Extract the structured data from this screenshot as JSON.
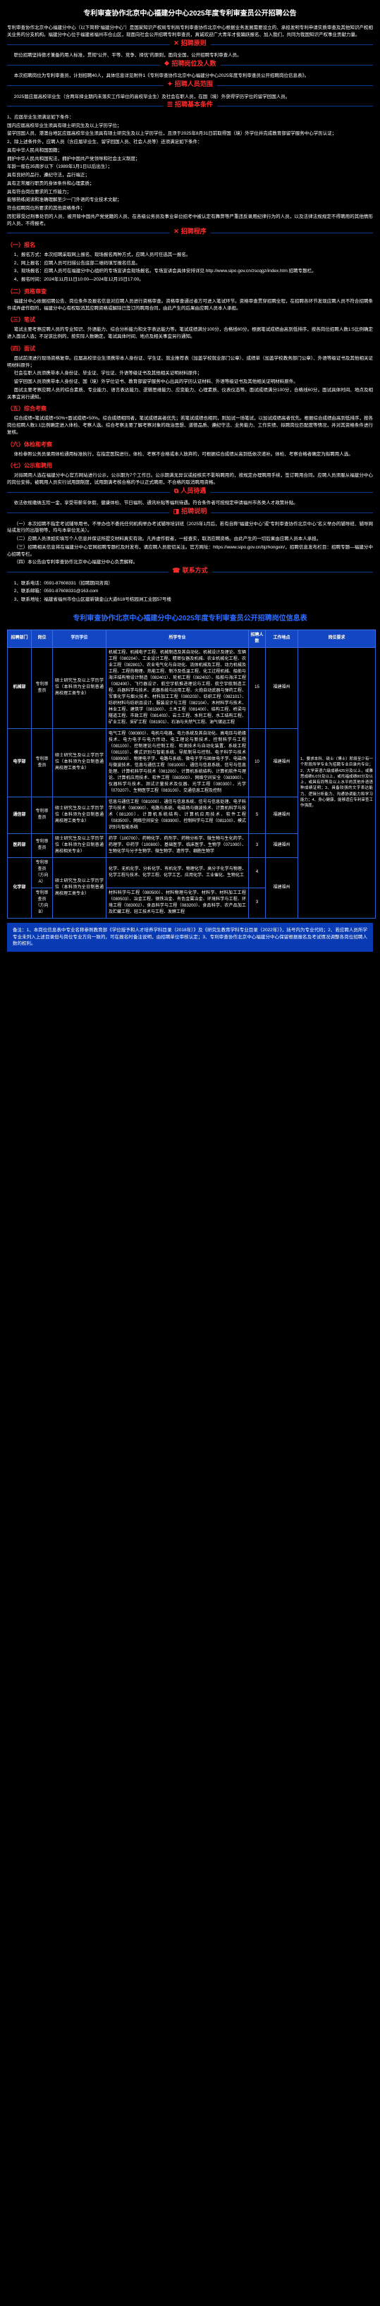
{
  "page": {
    "title": "专利审查协作北京中心福建分中心2025年度专利审查员公开招聘公告",
    "intro": "专利审查协作北京中心福建分中心（以下简称“福建分中心”）是国家知识产权局专利局专利审查协作北京中心根据业务发展需要设立的、承担发明专利申请实质审查及其他知识产权相关业务的分支机构。福建分中心位于福建省福州市仓山区，现面向社会公开招聘专利审查员，真诚欢迎广大青年才俊踊跃报名、加入我们，共同为我国知识产权事业贡献力量。",
    "sections": {
      "s1": {
        "icon": "✕",
        "title": "招聘原则"
      },
      "s2": {
        "icon": "❖",
        "title": "招聘岗位及人数"
      },
      "s3": {
        "icon": "✦",
        "title": "招聘人员范围"
      },
      "s4": {
        "icon": "☰",
        "title": "招聘基本条件"
      },
      "s5": {
        "icon": "✕",
        "title": "招聘程序"
      },
      "s6": {
        "icon": "⧉",
        "title": "人员待遇"
      },
      "s7": {
        "icon": "◨",
        "title": "招聘说明"
      },
      "s8": {
        "icon": "☎",
        "title": "联系方式"
      }
    },
    "s1_body": "职位招聘坚持德才兼备的用人标准，贯彻“公开、平等、竞争、择优”的原则，面向全国，公开招聘专利审查人员。",
    "s2_body": "本次招聘岗位为专利审查员，计划招聘40人，具体信息详见附件1《专利审查协作北京中心福建分中心2025年度专利审查员公开招聘岗位信息表》。",
    "s3_body": "2025届应届高校毕业生（含两年择业期内未落实工作单位的高校毕业生）及社会在职人员，在国（境）外获得学历学位的留学回国人员。",
    "s4_lead": "1、应届毕业生须满足如下条件：",
    "s4_lead2": "2、除上述条件外，应聘人员（含应届毕业生、留学回国人员、社会人员等）还须满足如下条件：",
    "s4_items": [
      "国内应届高校毕业生须具有硕士研究生及以上学历学位；",
      "留学回国人员、港澳台地区应届高校毕业生须具有硕士研究生及以上学历学位，且须于2025年8月31日前取得国（境）外学位并完成教育部留学服务中心学历认证；",
      "具有中华人民共和国国籍；",
      "拥护中华人民共和国宪法，拥护中国共产党领导和社会主义制度；",
      "年龄一般在35周岁以下（1989年1月1日以后出生）；",
      "具有良好的品行，遵纪守法，品行端正；",
      "具有正常履行职责的身体条件和心理素质；",
      "具有符合岗位要求的工作能力；",
      "能够熟练阅读和准确理解至少一门外语的专业技术文献；",
      "符合招聘岗位所要求的其他资格条件；",
      "因犯罪受过刑事处罚的人员、被开除中国共产党党籍的人员、在各级公务员及事业单位招考中被认定有舞弊等严重违反录用纪律行为的人员，以及法律法规规定不得聘用的其他情形的人员，不得报考。"
    ],
    "s5": {
      "sub1": "（一）报名",
      "sub1_items": [
        "1、报名方式：本次招聘采取网上报名、现场报名两种方式，应聘人员可任选其一报名。",
        "2、网上报名：应聘人员可扫描公告底部二维码填写报名信息。",
        "3、现场报名：应聘人员可在福建分中心组织的专场宣讲会现场报名。专场宣讲会具体安排详见 http://www.sipo.gov.cn/zscqgz/index.htm 招聘专题栏。",
        "4、报名时间：2024年11月11日10:00—2024年12月15日17:00。"
      ],
      "sub2": "（二）资格审查",
      "sub2_body": "福建分中心依据招聘公告、岗位条件及报名信息对应聘人员进行资格审查。资格审查通过者方可进入笔试环节。资格审查贯穿招聘全程，在招聘各环节发现应聘人员不符合招聘条件或弄虚作假的，福建分中心有权取消其应聘资格或解除已签订的聘用合同，由此产生的后果由应聘人员本人承担。",
      "sub3": "（三）笔试",
      "sub3_body": "笔试主要考察应聘人员的专业知识、外语能力、综合分析能力和文字表达能力等。笔试成绩满分100分，合格线60分。根据笔试成绩由高到低排序，按各岗位招聘人数1:5比例确定进入面试人选；不足该比例的，按实际人数确定。笔试具体时间、地点及相关事宜另行通知。",
      "sub4": "（四）面试",
      "sub4_body_items": [
        "面试前须进行现场资格复审。应届高校毕业生须携带本人身份证、学生证、就业推荐表（加盖学校就业部门公章）、成绩单（加盖学校教务部门公章）、外语等级证书及其他相关证明材料原件；",
        "社会在职人员须携带本人身份证、毕业证、学位证、外语等级证书及其他相关证明材料原件；",
        "留学回国人员须携带本人身份证、国（境）外学位证书、教育部留学服务中心出具的学历认证材料、外语等级证书及其他相关证明材料原件。",
        "面试主要考察应聘人员的综合素质、专业能力、语言表达能力、逻辑思维能力、应变能力、心理素质、仪表仪态等。面试成绩满分100分，合格线60分。面试具体时间、地点及相关事宜另行通知。"
      ],
      "sub5": "（五）综合考察",
      "sub5_body": "综合成绩=笔试成绩×50%+面试成绩×50%。综合成绩相同者，笔试成绩高者优先；若笔试成绩也相同，则加试一场笔试，以加试成绩高者优先。根据综合成绩由高到低排序，按各岗位招聘人数1:1比例确定进入体检、考察人选。综合考察主要了解考察对象的政治思想、道德品质、遵纪守法、业务能力、工作实绩、拟聘岗位匹配度等情况，并对其资格条件进行复核。",
      "sub6": "（六）体检和考察",
      "sub6_body": "体检参照公务员录用体检通用标准执行，在指定医院进行。体检、考察不合格或本人放弃的，可根据综合成绩从高到低依次递补。体检、考察合格者确定为拟聘用人选。",
      "sub7": "（七）公示和聘用",
      "sub7_body": "对拟聘用人选在福建分中心官方网站进行公示，公示期为7个工作日。公示期满无异议或经核实不影响聘用的，按规定办理聘用手续，签订聘用合同。应聘人员须服从福建分中心的岗位安排。被聘用人员实行试用期制度，试用期满考核合格的予以正式聘用，不合格的取消聘用资格。"
    },
    "s6_body": "依法依规缴纳五险一金，享受带薪年休假、健康体检、节日福利、通讯补贴等福利待遇。符合条件者可按规定申请福州市各类人才政策补贴。",
    "s7_items": [
      "（一）本次招聘不指定考试辅导用书，不举办也不委托任何机构举办考试辅导培训班（2025年1月后，若有自称“福建分中心”或“专利审查协作北京中心”名义举办的辅导班、辅导网站或发行的出版物等，均与本单位无关）。",
      "（二）应聘人员须如实填写个人信息并保证所提交材料真实有效。凡弄虚作假者，一经查实，取消应聘资格。由此产生的一切后果由应聘人员本人承担。",
      "（三）招聘相关信息将在福建分中心官网招聘专题栏及时发布，请应聘人员密切关注。官方网址：https://www.sipo.gov.cn/bjzhongxin/，招聘信息发布栏目：招聘专题—福建分中心招聘专栏。",
      "（四）本公告由专利审查协作北京中心福建分中心负责解释。"
    ],
    "s8": {
      "line1": "1、联系电话：0591-87608331（招聘期间咨询）",
      "line2": "2、联系邮箱：0591-87608331@163.com",
      "line3": "3、联系地址：福建省福州市仓山区建新镇金山大道618号桔园洲工业园57号楼"
    }
  },
  "table": {
    "title": "专利审查协作北京中心福建分中心2025年度专利审查员公开招聘岗位信息表",
    "headers": [
      "招聘部门",
      "岗位",
      "学历学位",
      "所学专业",
      "招聘人数",
      "工作地点",
      "岗位要求"
    ],
    "req_common": "1、要求本科、硕士（博士）阶段至少有一个阶段所学专业为招聘专业目录内专业；2、大学英语六级成绩425分及以上，或雅思成绩6.0分及以上，或托福成绩80分及以上，或具有同等及以上水平的其他外语语种成绩证明；3、具备较强的文字表达能力、逻辑分析能力、沟通协调能力和学习能力；4、身心健康，能够适应专利审查工作强度。",
    "rows": [
      {
        "dept": "机械部",
        "post": "专利审查员",
        "edu": "硕士研究生及以上学历学位（本科须为全日制普通高校理工类专业）",
        "major": "机械工程、机械电子工程、机械制造及其自动化、机械设计及理论、车辆工程（080204）、工业设计工程、精密仪器及机械、农业机械化工程、农业工程（082801）、农业电气化与自动化、流体机械及工程、动力机械及工程、工程热物理、热能工程、制冷及低温工程、化工过程机械、船舶与海洋结构物设计制造（082401）、轮机工程（082402）、船舶与海洋工程（082400）、飞行器设计、航空宇航推进理论与工程、航空宇航制造工程、兵器科学与技术、武器系统与运用工程、火炮自动武器与弹药工程、军事化学与烟火技术、材料加工工程（080203）、纺织工程（082101）、纺织材料与纺织品设计、服装设计与工程（082104）、木材科学与技术、林业工程、建筑学（081300）、土木工程（081400）、结构工程、桥梁与隧道工程、市政工程（081403）、岩土工程、水利工程、水工结构工程、矿业工程、采矿工程（081901）、石油与天然气工程、油气储运工程",
        "count": "15",
        "loc": "福建福州"
      },
      {
        "dept": "电学部",
        "post": "专利审查员",
        "edu": "硕士研究生及以上学历学位（本科须为全日制普通高校理工类专业）",
        "major": "电气工程（080800）、电机与电器、电力系统及其自动化、高电压与绝缘技术、电力电子与电力传动、电工理论与新技术、控制科学与工程（081100）、控制理论与控制工程、检测技术与自动化装置、系统工程（081103）、模式识别与智能系统、导航制导与控制、电子科学与技术（080900）、物理电子学、电路与系统、微电子学与固体电子学、电磁场与微波技术、信息与通信工程（081000）、通信与信息系统、信号与信息处理、计算机科学与技术（081200）、计算机系统结构、计算机软件与理论、计算机应用技术、软件工程（083500）、网络空间安全（083900）、仪器科学与技术、测试计量技术及仪器、光学工程（080300）、光学（070207）、生物医学工程（083100）、交通信息工程及控制",
        "count": "10",
        "loc": "福建福州"
      },
      {
        "dept": "通信部",
        "post": "专利审查员",
        "edu": "硕士研究生及以上学历学位（本科须为全日制普通高校理工类专业）",
        "major": "信息与通信工程（081000）、通信与信息系统、信号与信息处理、电子科学与技术（080900）、电路与系统、电磁场与微波技术、计算机科学与技术（081200）、计算机系统结构、计算机应用技术、软件工程（083500）、网络空间安全（083900）、控制科学与工程（081100）、模式识别与智能系统",
        "count": "5",
        "loc": "福建福州"
      },
      {
        "dept": "医药部",
        "post": "专利审查员",
        "edu": "硕士研究生及以上学历学位（本科须为全日制普通高校相关专业）",
        "major": "药学（100700）、药物化学、药剂学、药物分析学、微生物与生化药学、药理学、中药学（100800）、基础医学、临床医学、生物学（071000）、生物化学与分子生物学、微生物学、遗传学、细胞生物学",
        "count": "3",
        "loc": "福建福州"
      },
      {
        "dept": "化学部",
        "post_a": "专利审查员（方向A）",
        "post_b": "专利审查员（方向B）",
        "edu": "硕士研究生及以上学历学位（本科须为全日制普通高校理工类专业）",
        "major_a": "化学、无机化学、分析化学、有机化学、物理化学、高分子化学与物理、化学工程与技术、化学工程、化学工艺、应用化学、工业催化、生物化工",
        "major_b": "材料科学与工程（080500）、材料物理与化学、材料学、材料加工工程（080503）、冶金工程、钢铁冶金、有色金属冶金、环境科学与工程、环境工程（083002）、食品科学与工程（083200）、食品科学、农产品加工及贮藏工程、轻工技术与工程、发酵工程",
        "count_a": "4",
        "count_b": "3",
        "loc": "福建福州"
      }
    ],
    "footnote": "备注：1、本岗位信息表中专业名称参照教育部《学位授予和人才培养学科目录（2018年）》及《研究生教育学科专业目录（2022年）》，括号内为专业代码；2、若应聘人员所学专业未列入上述目录但与岗位专业方向一致的，可在报名时备注说明，由招聘单位审核认定；3、专利审查协作北京中心福建分中心保留根据报名及考试情况调整各岗位招聘人数的权利。"
  }
}
